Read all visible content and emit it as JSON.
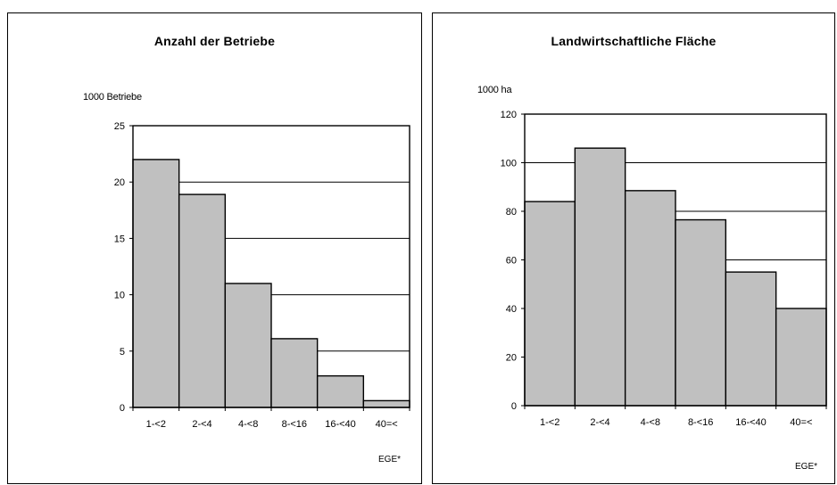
{
  "chart_data": [
    {
      "type": "bar",
      "title": "Anzahl der Betriebe",
      "ylabel": "1000 Betriebe",
      "xlabel": "EGE*",
      "categories": [
        "1-<2",
        "2-<4",
        "4-<8",
        "8-<16",
        "16-<40",
        "40=<"
      ],
      "values": [
        22.0,
        18.9,
        11.0,
        6.1,
        2.8,
        0.6
      ],
      "ylim": [
        0,
        25
      ],
      "yticks": [
        "0",
        "5",
        "10",
        "15",
        "20",
        "25"
      ],
      "grid": true,
      "bar_color": "#c0c0c0"
    },
    {
      "type": "bar",
      "title": "Landwirtschaftliche Fläche",
      "ylabel": "1000 ha",
      "xlabel": "EGE*",
      "categories": [
        "1-<2",
        "2-<4",
        "4-<8",
        "8-<16",
        "16-<40",
        "40=<"
      ],
      "values": [
        84,
        106,
        88.5,
        76.5,
        55,
        40
      ],
      "ylim": [
        0,
        120
      ],
      "yticks": [
        "0",
        "20",
        "40",
        "60",
        "80",
        "100",
        "120"
      ],
      "grid": true,
      "bar_color": "#c0c0c0"
    }
  ]
}
